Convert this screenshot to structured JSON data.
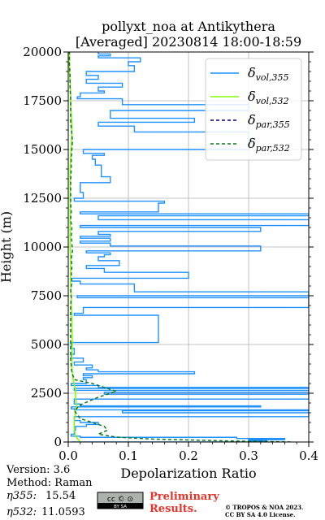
{
  "figure": {
    "title_line1": "pollyxt_noa at Antikythera",
    "title_line2": "[Averaged] 20230814 18:00-18:59",
    "info": {
      "version": "Version: 3.6",
      "method": "Method: Raman",
      "eta355_label": "η355:",
      "eta355_value": "15.54",
      "eta532_label": "η532:",
      "eta532_value": "11.0593"
    },
    "cc_badge": {
      "top": "cc © ⊙",
      "bottom": "BY   SA"
    },
    "preliminary": {
      "line1": "Preliminary",
      "line2": "Results.",
      "color": "#e8332a"
    },
    "license": {
      "line1": "© TROPOS & NOA 2023.",
      "line2": "CC BY SA 4.0 License."
    }
  },
  "chart_data": {
    "type": "line",
    "xlabel": "Depolarization Ratio",
    "ylabel": "Height (m)",
    "xlim": [
      0,
      0.4
    ],
    "ylim": [
      0,
      20000
    ],
    "xticks": [
      "0.0",
      "0.1",
      "0.2",
      "0.3",
      "0.4"
    ],
    "yticks": [
      "0",
      "2500",
      "5000",
      "7500",
      "10000",
      "12500",
      "15000",
      "17500",
      "20000"
    ],
    "grid": true,
    "legend_position": "top-right",
    "series": [
      {
        "name": "δvol,355",
        "legend_main": "δ",
        "legend_sub": "vol,355",
        "color": "#1e90ff",
        "style": "solid",
        "points": [
          [
            0.005,
            0
          ],
          [
            0.33,
            60
          ],
          [
            0.3,
            120
          ],
          [
            0.36,
            180
          ],
          [
            0.28,
            240
          ],
          [
            0.02,
            300
          ],
          [
            0.005,
            400
          ],
          [
            0.01,
            600
          ],
          [
            0.012,
            800
          ],
          [
            0.03,
            900
          ],
          [
            0.05,
            1000
          ],
          [
            0.02,
            1100
          ],
          [
            0.01,
            1300
          ],
          [
            0.4,
            1500
          ],
          [
            0.09,
            1600
          ],
          [
            0.4,
            1650
          ],
          [
            0.01,
            1700
          ],
          [
            0.005,
            1800
          ],
          [
            0.32,
            1850
          ],
          [
            0.02,
            1950
          ],
          [
            0.01,
            2200
          ],
          [
            0.4,
            2450
          ],
          [
            0.06,
            2550
          ],
          [
            0.4,
            2650
          ],
          [
            0.01,
            2750
          ],
          [
            0.4,
            2800
          ],
          [
            0.05,
            2900
          ],
          [
            0.005,
            3000
          ],
          [
            0.03,
            3200
          ],
          [
            0.025,
            3300
          ],
          [
            0.04,
            3400
          ],
          [
            0.025,
            3500
          ],
          [
            0.21,
            3600
          ],
          [
            0.05,
            3700
          ],
          [
            0.03,
            3800
          ],
          [
            0.04,
            3950
          ],
          [
            0.01,
            4100
          ],
          [
            0.025,
            4300
          ],
          [
            0.005,
            4500
          ],
          [
            0.01,
            4800
          ],
          [
            0.005,
            5100
          ],
          [
            0.15,
            6500
          ],
          [
            0.01,
            6600
          ],
          [
            0.025,
            6900
          ],
          [
            0.4,
            7400
          ],
          [
            0.015,
            7500
          ],
          [
            0.4,
            7700
          ],
          [
            0.11,
            8100
          ],
          [
            0.02,
            8250
          ],
          [
            0.005,
            8400
          ],
          [
            0.2,
            8700
          ],
          [
            0.06,
            8900
          ],
          [
            0.03,
            9050
          ],
          [
            0.085,
            9300
          ],
          [
            0.05,
            9500
          ],
          [
            0.06,
            9600
          ],
          [
            0.07,
            9700
          ],
          [
            0.03,
            9800
          ],
          [
            0.32,
            9950
          ],
          [
            0.32,
            10050
          ],
          [
            0.07,
            10200
          ],
          [
            0.02,
            10300
          ],
          [
            0.07,
            10450
          ],
          [
            0.02,
            10550
          ],
          [
            0.07,
            10650
          ],
          [
            0.05,
            10800
          ],
          [
            0.32,
            10900
          ],
          [
            0.32,
            11000
          ],
          [
            0.02,
            11100
          ],
          [
            0.4,
            11200
          ],
          [
            0.4,
            11400
          ],
          [
            0.05,
            11600
          ],
          [
            0.4,
            11700
          ],
          [
            0.02,
            11800
          ],
          [
            0.15,
            12250
          ],
          [
            0.16,
            12350
          ],
          [
            0.01,
            12500
          ],
          [
            0.025,
            12800
          ],
          [
            0.02,
            13300
          ],
          [
            0.07,
            13600
          ],
          [
            0.055,
            14000
          ],
          [
            0.055,
            14200
          ],
          [
            0.045,
            14300
          ],
          [
            0.045,
            14500
          ],
          [
            0.04,
            14700
          ],
          [
            0.06,
            14800
          ],
          [
            0.025,
            15000
          ],
          [
            0.3,
            15800
          ],
          [
            0.3,
            15900
          ],
          [
            0.11,
            16100
          ],
          [
            0.11,
            16200
          ],
          [
            0.05,
            16400
          ],
          [
            0.21,
            16600
          ],
          [
            0.07,
            17000
          ],
          [
            0.3,
            17300
          ],
          [
            0.09,
            17600
          ],
          [
            0.015,
            17700
          ],
          [
            0.02,
            17900
          ],
          [
            0.06,
            18000
          ],
          [
            0.05,
            18200
          ],
          [
            0.09,
            18400
          ],
          [
            0.03,
            18600
          ],
          [
            0.05,
            18800
          ],
          [
            0.03,
            19000
          ],
          [
            0.11,
            19300
          ],
          [
            0.1,
            19500
          ],
          [
            0.12,
            19700
          ],
          [
            0.05,
            19800
          ],
          [
            0.07,
            19900
          ],
          [
            0.05,
            20000
          ]
        ]
      },
      {
        "name": "δvol,532",
        "legend_main": "δ",
        "legend_sub": "vol,532",
        "color": "#7fff00",
        "style": "solid",
        "points": [
          [
            0.02,
            0
          ],
          [
            0.012,
            300
          ],
          [
            0.01,
            700
          ],
          [
            0.01,
            1100
          ],
          [
            0.012,
            1500
          ],
          [
            0.014,
            1900
          ],
          [
            0.012,
            2300
          ],
          [
            0.012,
            2700
          ],
          [
            0.008,
            3200
          ],
          [
            0.006,
            3800
          ],
          [
            0.006,
            4500
          ],
          [
            0.007,
            5100
          ],
          [
            0.006,
            5800
          ],
          [
            0.006,
            6400
          ],
          [
            0.005,
            7000
          ],
          [
            0.005,
            7600
          ],
          [
            0.004,
            8200
          ],
          [
            0.004,
            8800
          ],
          [
            0.004,
            9400
          ],
          [
            0.003,
            10000
          ],
          [
            0.003,
            10600
          ],
          [
            0.003,
            11200
          ],
          [
            0.003,
            12000
          ],
          [
            0.003,
            12800
          ],
          [
            0.003,
            13400
          ],
          [
            0.003,
            14000
          ],
          [
            0.004,
            14600
          ],
          [
            0.005,
            15200
          ],
          [
            0.006,
            15800
          ],
          [
            0.006,
            16300
          ],
          [
            0.005,
            16800
          ],
          [
            0.004,
            17300
          ],
          [
            0.004,
            17800
          ],
          [
            0.003,
            18400
          ],
          [
            0.002,
            19000
          ],
          [
            0.002,
            19600
          ],
          [
            0.002,
            20000
          ]
        ]
      },
      {
        "name": "δpar,355",
        "legend_main": "δ",
        "legend_sub": "par,355",
        "color": "#00008b",
        "style": "dashed",
        "points": []
      },
      {
        "name": "δpar,532",
        "legend_main": "δ",
        "legend_sub": "par,532",
        "color": "#0a7a1a",
        "style": "dashed",
        "points": [
          [
            0.37,
            0
          ],
          [
            0.26,
            60
          ],
          [
            0.14,
            150
          ],
          [
            0.08,
            250
          ],
          [
            0.05,
            400
          ],
          [
            0.065,
            600
          ],
          [
            0.06,
            800
          ],
          [
            0.04,
            1000
          ],
          [
            0.02,
            1200
          ],
          [
            0.01,
            1600
          ],
          [
            0.02,
            1900
          ],
          [
            0.05,
            2300
          ],
          [
            0.08,
            2600
          ],
          [
            0.06,
            2800
          ],
          [
            0.04,
            3000
          ],
          [
            0.01,
            3200
          ],
          [
            0.006,
            3600
          ],
          [
            0.004,
            4200
          ],
          [
            0.004,
            5000
          ],
          [
            0.004,
            5800
          ],
          [
            0.004,
            6400
          ],
          [
            0.004,
            7000
          ],
          [
            0.005,
            7400
          ],
          [
            0.004,
            7800
          ],
          [
            0.006,
            8200
          ],
          [
            0.005,
            8600
          ],
          [
            0.006,
            9000
          ],
          [
            0.005,
            9400
          ],
          [
            0.007,
            9800
          ],
          [
            0.006,
            10200
          ],
          [
            0.005,
            10600
          ],
          [
            0.006,
            11000
          ],
          [
            0.004,
            11400
          ],
          [
            0.005,
            11800
          ],
          [
            0.004,
            12200
          ],
          [
            0.004,
            12800
          ],
          [
            0.004,
            13400
          ],
          [
            0.005,
            14000
          ],
          [
            0.005,
            14600
          ],
          [
            0.006,
            15000
          ],
          [
            0.007,
            15400
          ],
          [
            0.006,
            15800
          ],
          [
            0.004,
            16400
          ],
          [
            0.004,
            17000
          ],
          [
            0.004,
            17600
          ],
          [
            0.003,
            18200
          ],
          [
            0.003,
            18800
          ],
          [
            0.002,
            19400
          ],
          [
            0.002,
            20000
          ]
        ]
      }
    ]
  }
}
